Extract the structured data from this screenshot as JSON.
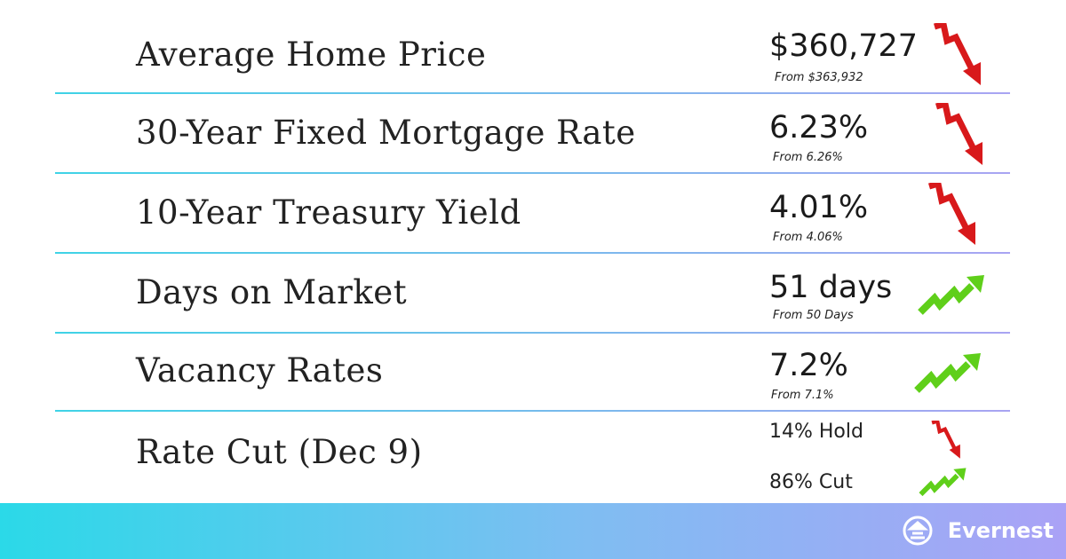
{
  "rows": [
    {
      "label": "Average Home Price",
      "value": "$360,727",
      "from": "From $363,932"
    },
    {
      "label": "30-Year Fixed Mortgage Rate",
      "value": "6.23%",
      "from": "From 6.26%"
    },
    {
      "label": "10-Year Treasury Yield",
      "value": "4.01%",
      "from": "From 4.06%"
    },
    {
      "label": "Days on Market",
      "value": "51 days",
      "from": "From 50 Days"
    },
    {
      "label": "Vacancy Rates",
      "value": "7.2%",
      "from": "From 7.1%"
    }
  ],
  "rate_cut": {
    "label": "Rate Cut (Dec 9)",
    "hold": "14% Hold",
    "cut": "86% Cut"
  },
  "footer": {
    "brand": "Evernest"
  }
}
